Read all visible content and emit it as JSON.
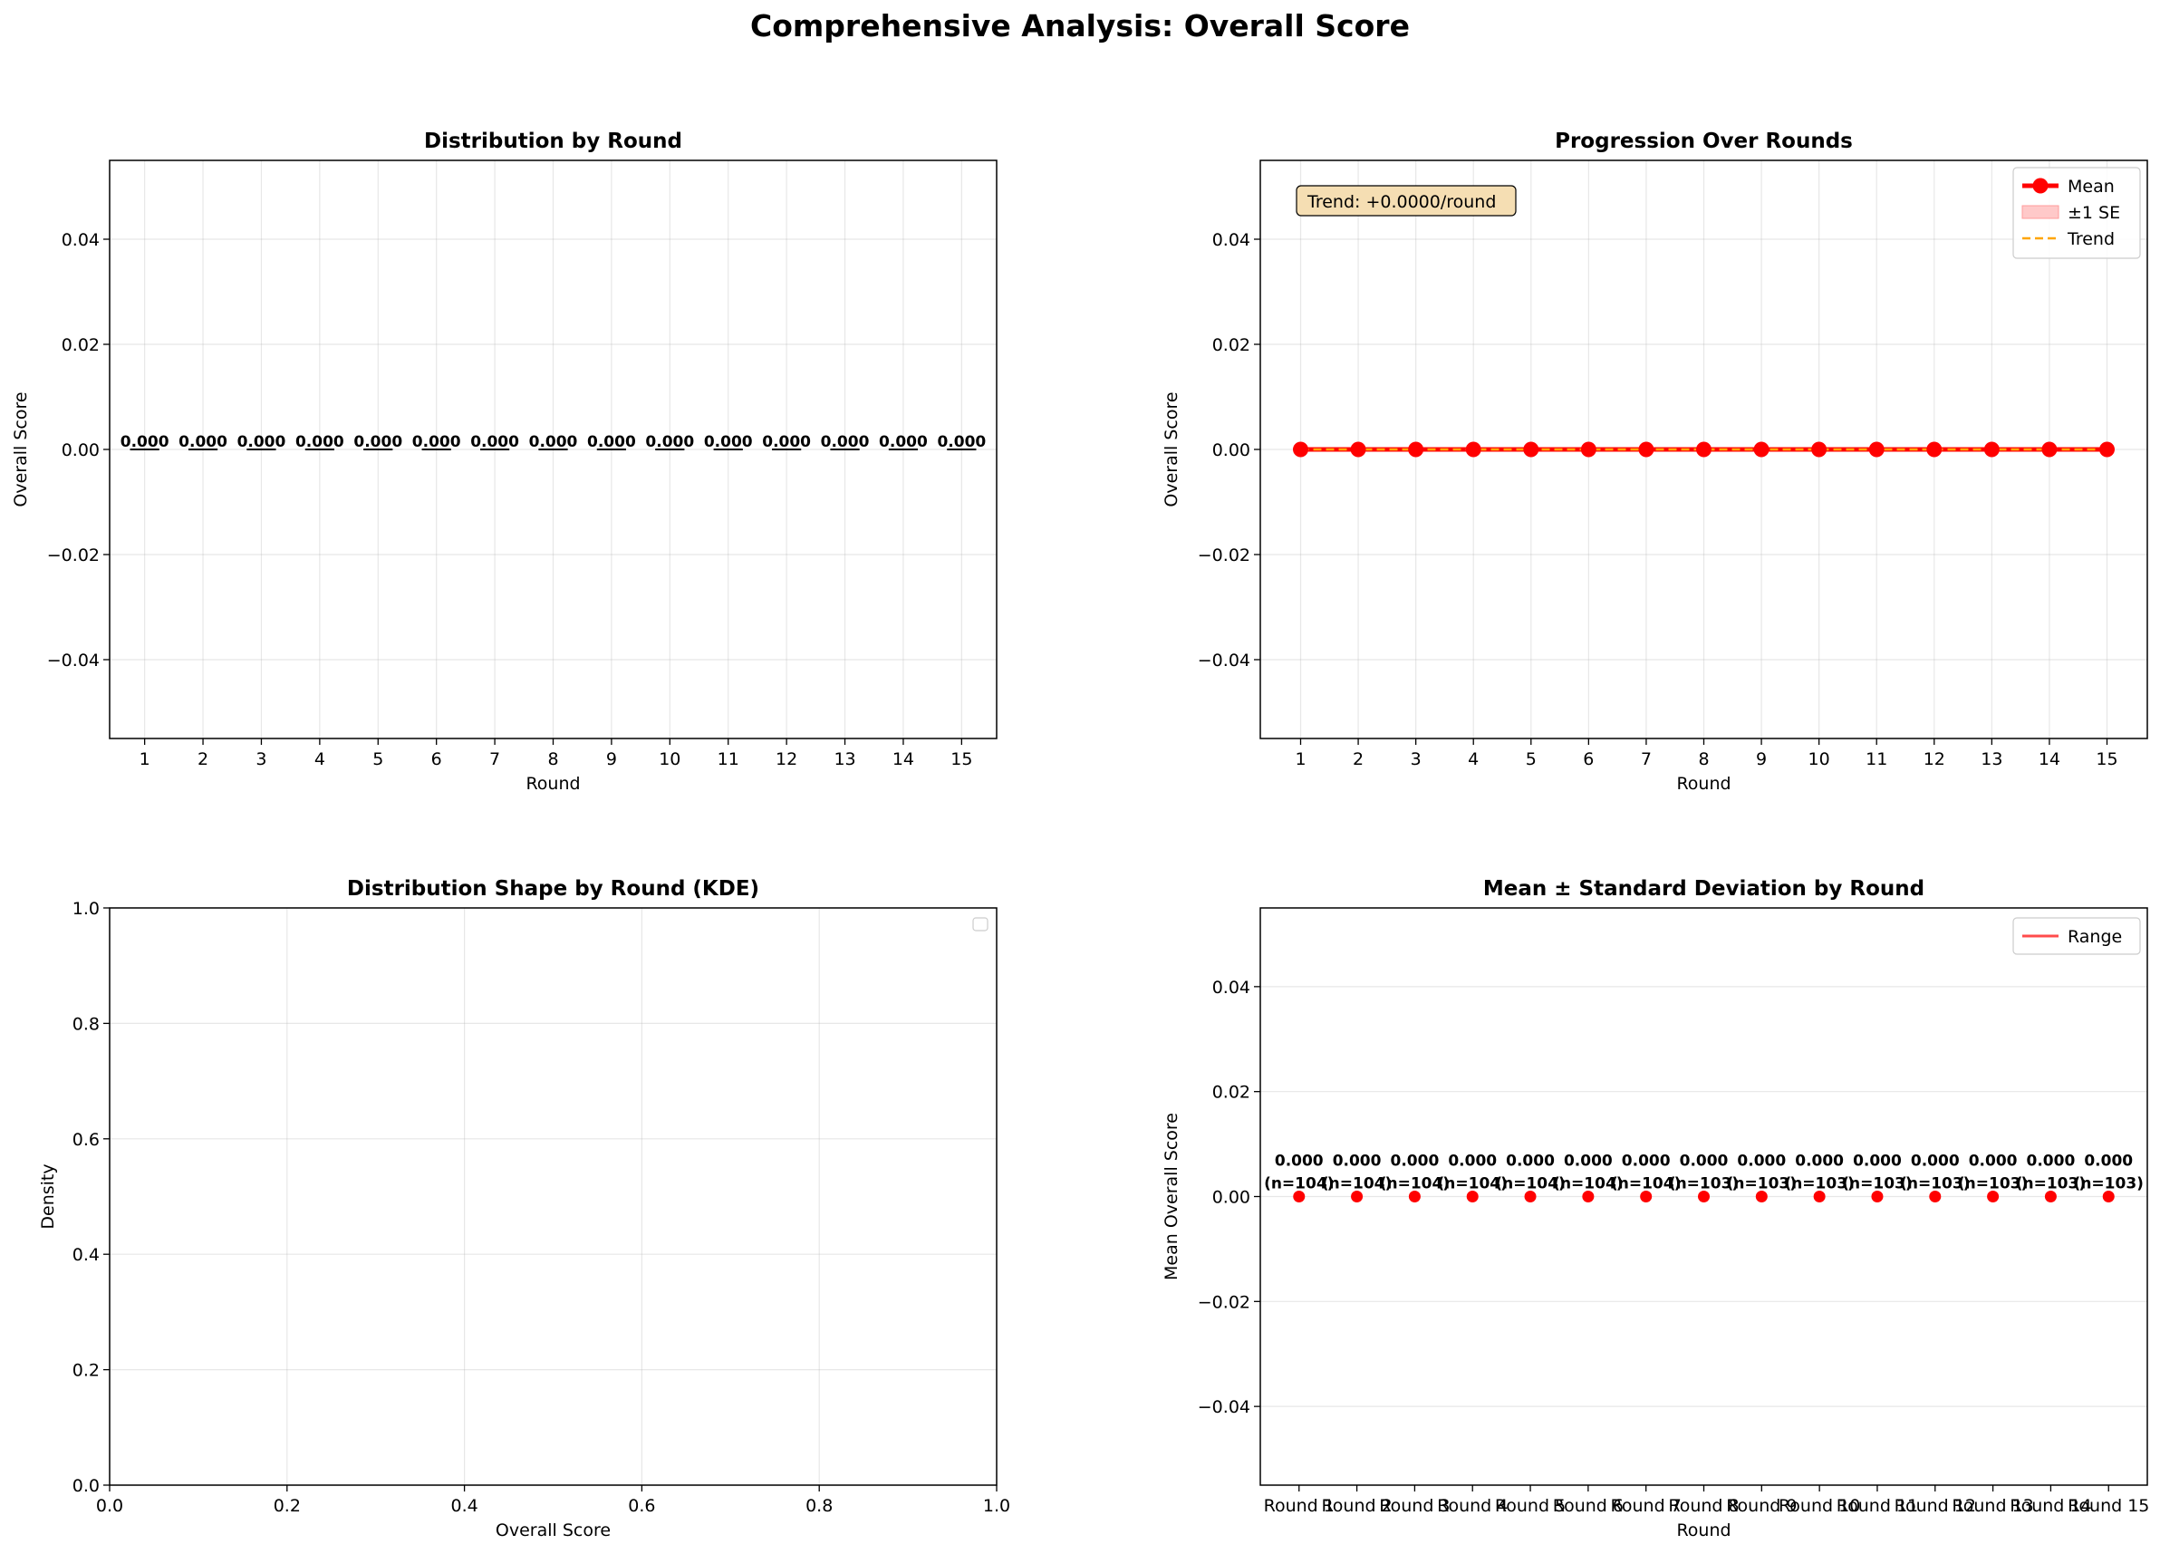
{
  "figure": {
    "suptitle": "Comprehensive Analysis: Overall Score"
  },
  "chart_data": [
    {
      "id": "distribution",
      "type": "box",
      "title": "Distribution by Round",
      "xlabel": "Round",
      "ylabel": "Overall Score",
      "categories": [
        "1",
        "2",
        "3",
        "4",
        "5",
        "6",
        "7",
        "8",
        "9",
        "10",
        "11",
        "12",
        "13",
        "14",
        "15"
      ],
      "medians": [
        0,
        0,
        0,
        0,
        0,
        0,
        0,
        0,
        0,
        0,
        0,
        0,
        0,
        0,
        0
      ],
      "value_labels": [
        "0.000",
        "0.000",
        "0.000",
        "0.000",
        "0.000",
        "0.000",
        "0.000",
        "0.000",
        "0.000",
        "0.000",
        "0.000",
        "0.000",
        "0.000",
        "0.000",
        "0.000"
      ],
      "ylim": [
        -0.055,
        0.055
      ],
      "yticks": [
        -0.04,
        -0.02,
        0.0,
        0.02,
        0.04
      ],
      "ytick_labels": [
        "−0.04",
        "−0.02",
        "0.00",
        "0.02",
        "0.04"
      ],
      "grid": true
    },
    {
      "id": "progression",
      "type": "line",
      "title": "Progression Over Rounds",
      "xlabel": "Round",
      "ylabel": "Overall Score",
      "x": [
        1,
        2,
        3,
        4,
        5,
        6,
        7,
        8,
        9,
        10,
        11,
        12,
        13,
        14,
        15
      ],
      "series": [
        {
          "name": "Mean",
          "values": [
            0,
            0,
            0,
            0,
            0,
            0,
            0,
            0,
            0,
            0,
            0,
            0,
            0,
            0,
            0
          ],
          "color": "#ff0000"
        },
        {
          "name": "±1 SE",
          "values": [
            0,
            0,
            0,
            0,
            0,
            0,
            0,
            0,
            0,
            0,
            0,
            0,
            0,
            0,
            0
          ],
          "color": "#ffc9c9"
        },
        {
          "name": "Trend",
          "values": [
            0,
            0,
            0,
            0,
            0,
            0,
            0,
            0,
            0,
            0,
            0,
            0,
            0,
            0,
            0
          ],
          "color": "#ffa500"
        }
      ],
      "annotation": "Trend: +0.0000/round",
      "ylim": [
        -0.055,
        0.055
      ],
      "yticks": [
        -0.04,
        -0.02,
        0.0,
        0.02,
        0.04
      ],
      "ytick_labels": [
        "−0.04",
        "−0.02",
        "0.00",
        "0.02",
        "0.04"
      ],
      "legend": "top-right",
      "grid": true
    },
    {
      "id": "kde",
      "type": "line",
      "title": "Distribution Shape by Round (KDE)",
      "xlabel": "Overall Score",
      "ylabel": "Density",
      "series": [],
      "xlim": [
        0,
        1
      ],
      "ylim": [
        0,
        1
      ],
      "xticks": [
        0.0,
        0.2,
        0.4,
        0.6,
        0.8,
        1.0
      ],
      "xtick_labels": [
        "0.0",
        "0.2",
        "0.4",
        "0.6",
        "0.8",
        "1.0"
      ],
      "yticks": [
        0.0,
        0.2,
        0.4,
        0.6,
        0.8,
        1.0
      ],
      "ytick_labels": [
        "0.0",
        "0.2",
        "0.4",
        "0.6",
        "0.8",
        "1.0"
      ],
      "legend": "top-right",
      "grid": true
    },
    {
      "id": "meanstd",
      "type": "scatter",
      "title": "Mean ± Standard Deviation by Round",
      "xlabel": "Round",
      "ylabel": "Mean Overall Score",
      "categories": [
        "Round 1",
        "Round 2",
        "Round 3",
        "Round 4",
        "Round 5",
        "Round 6",
        "Round 7",
        "Round 8",
        "Round 9",
        "Round 10",
        "Round 11",
        "Round 12",
        "Round 13",
        "Round 14",
        "Round 15"
      ],
      "means": [
        0,
        0,
        0,
        0,
        0,
        0,
        0,
        0,
        0,
        0,
        0,
        0,
        0,
        0,
        0
      ],
      "mean_labels": [
        "0.000",
        "0.000",
        "0.000",
        "0.000",
        "0.000",
        "0.000",
        "0.000",
        "0.000",
        "0.000",
        "0.000",
        "0.000",
        "0.000",
        "0.000",
        "0.000",
        "0.000"
      ],
      "counts": [
        "(n=104)",
        "(n=104)",
        "(n=104)",
        "(n=104)",
        "(n=104)",
        "(n=104)",
        "(n=104)",
        "(n=103)",
        "(n=103)",
        "(n=103)",
        "(n=103)",
        "(n=103)",
        "(n=103)",
        "(n=103)",
        "(n=103)"
      ],
      "series": [
        {
          "name": "Range",
          "color": "#ff0000"
        }
      ],
      "marker_color": "#ff0000",
      "ylim": [
        -0.055,
        0.055
      ],
      "yticks": [
        -0.04,
        -0.02,
        0.0,
        0.02,
        0.04
      ],
      "ytick_labels": [
        "−0.04",
        "−0.02",
        "0.00",
        "0.02",
        "0.04"
      ],
      "legend": "top-right",
      "grid": true
    }
  ]
}
